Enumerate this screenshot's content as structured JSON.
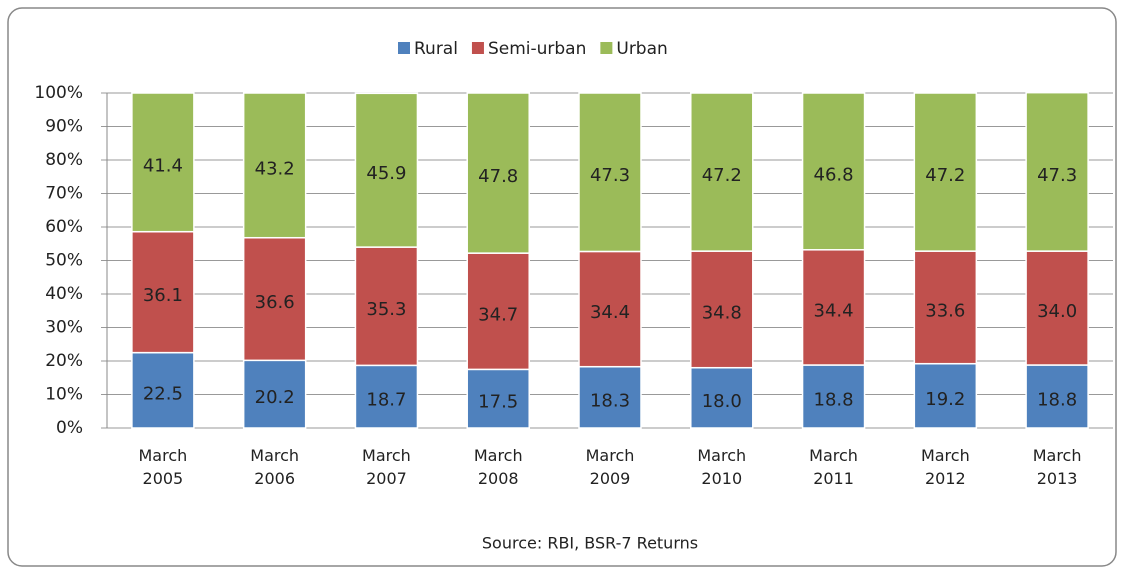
{
  "chart_data": {
    "type": "stacked_bar",
    "categories": [
      "March 2005",
      "March 2006",
      "March 2007",
      "March 2008",
      "March 2009",
      "March 2010",
      "March 2011",
      "March 2012",
      "March 2013"
    ],
    "series": [
      {
        "name": "Rural",
        "color": "#4f81bd",
        "values": [
          22.5,
          20.2,
          18.7,
          17.5,
          18.3,
          18,
          18.8,
          19.2,
          18.8
        ],
        "value_labels": [
          "22.5",
          "20.2",
          "18.7",
          "17.5",
          "18.3",
          "18.0",
          "18.8",
          "19.2",
          "18.8"
        ]
      },
      {
        "name": "Semi-urban",
        "color": "#c0504d",
        "values": [
          36.1,
          36.6,
          35.3,
          34.7,
          34.4,
          34.8,
          34.4,
          33.6,
          34
        ],
        "value_labels": [
          "36.1",
          "36.6",
          "35.3",
          "34.7",
          "34.4",
          "34.8",
          "34.4",
          "33.6",
          "34.0"
        ]
      },
      {
        "name": "Urban",
        "color": "#9bbb59",
        "values": [
          41.4,
          43.2,
          45.9,
          47.8,
          47.3,
          47.2,
          46.8,
          47.2,
          47.3
        ],
        "value_labels": [
          "41.4",
          "43.2",
          "45.9",
          "47.8",
          "47.3",
          "47.2",
          "46.8",
          "47.2",
          "47.3"
        ]
      }
    ],
    "ylim": [
      0,
      100
    ],
    "yticks": [
      {
        "value": 0,
        "label": "0%"
      },
      {
        "value": 10,
        "label": "10%"
      },
      {
        "value": 20,
        "label": "20%"
      },
      {
        "value": 30,
        "label": "30%"
      },
      {
        "value": 40,
        "label": "40%"
      },
      {
        "value": 50,
        "label": "50%"
      },
      {
        "value": 60,
        "label": "60%"
      },
      {
        "value": 70,
        "label": "70%"
      },
      {
        "value": 80,
        "label": "80%"
      },
      {
        "value": 90,
        "label": "90%"
      },
      {
        "value": 100,
        "label": "100%"
      }
    ],
    "grid": true,
    "legend": "top",
    "source": "Source: RBI, BSR-7 Returns"
  }
}
